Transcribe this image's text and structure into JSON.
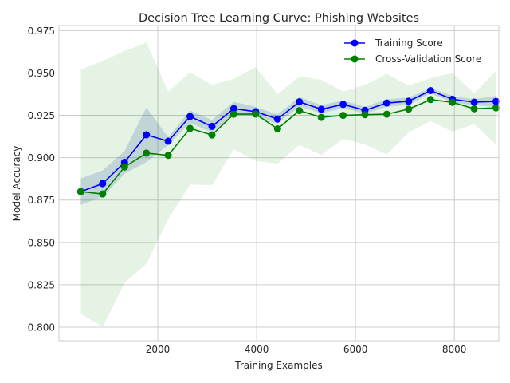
{
  "chart_data": {
    "type": "line",
    "title": "Decision Tree Learning Curve: Phishing Websites",
    "xlabel": "Training Examples",
    "ylabel": "Model Accuracy",
    "xlim": [
      0,
      8900
    ],
    "ylim": [
      0.792,
      0.978
    ],
    "xticks": [
      2000,
      4000,
      6000,
      8000
    ],
    "xtick_labels": [
      "2000",
      "4000",
      "6000",
      "8000"
    ],
    "yticks": [
      0.8,
      0.825,
      0.85,
      0.875,
      0.9,
      0.925,
      0.95,
      0.975
    ],
    "ytick_labels": [
      "0.800",
      "0.825",
      "0.850",
      "0.875",
      "0.900",
      "0.925",
      "0.950",
      "0.975"
    ],
    "grid": true,
    "legend_position": "top-right",
    "x": [
      442,
      884,
      1327,
      1769,
      2211,
      2653,
      3096,
      3538,
      3980,
      4422,
      4864,
      5307,
      5749,
      6191,
      6633,
      7075,
      7518,
      7960,
      8402,
      8844
    ],
    "series": [
      {
        "name": "Training Score",
        "color": "#0000ff",
        "band_color": "#3355aa",
        "values": [
          0.88,
          0.8847,
          0.8973,
          0.9135,
          0.9097,
          0.9243,
          0.9185,
          0.929,
          0.9272,
          0.9228,
          0.933,
          0.9286,
          0.9315,
          0.928,
          0.9323,
          0.9333,
          0.9396,
          0.9345,
          0.9328,
          0.9332
        ],
        "upper": [
          0.8878,
          0.8925,
          0.904,
          0.9296,
          0.912,
          0.928,
          0.9222,
          0.933,
          0.93,
          0.9255,
          0.9358,
          0.931,
          0.9338,
          0.93,
          0.9345,
          0.9355,
          0.9412,
          0.9365,
          0.9345,
          0.9365
        ],
        "lower": [
          0.8722,
          0.8769,
          0.8906,
          0.8974,
          0.9074,
          0.9206,
          0.9148,
          0.925,
          0.9244,
          0.9201,
          0.9302,
          0.9262,
          0.9292,
          0.926,
          0.9301,
          0.9311,
          0.938,
          0.9325,
          0.9311,
          0.9299
        ]
      },
      {
        "name": "Cross-Validation Score",
        "color": "#008000",
        "band_color": "#2ca02c",
        "values": [
          0.88,
          0.8786,
          0.8945,
          0.9027,
          0.9014,
          0.9173,
          0.9134,
          0.9257,
          0.9258,
          0.917,
          0.9278,
          0.9238,
          0.925,
          0.9254,
          0.9257,
          0.9287,
          0.9343,
          0.9327,
          0.9289,
          0.9294
        ],
        "upper": [
          0.952,
          0.957,
          0.963,
          0.968,
          0.939,
          0.9505,
          0.943,
          0.9465,
          0.9535,
          0.9375,
          0.948,
          0.946,
          0.939,
          0.943,
          0.9495,
          0.9425,
          0.947,
          0.95,
          0.938,
          0.951
        ]
      }
    ]
  }
}
